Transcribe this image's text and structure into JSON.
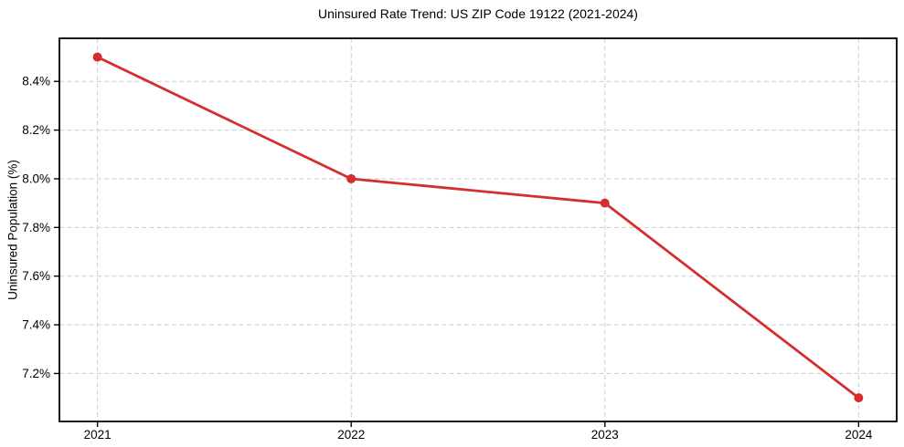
{
  "chart_data": {
    "type": "line",
    "title": "Uninsured Rate Trend: US ZIP Code 19122 (2021-2024)",
    "xlabel": "",
    "ylabel": "Uninsured Population (%)",
    "categories": [
      2021,
      2022,
      2023,
      2024
    ],
    "series": [
      {
        "name": "Uninsured rate",
        "values": [
          8.5,
          8.0,
          7.9,
          7.1
        ]
      }
    ],
    "unit": "%",
    "xticks": [
      2021,
      2022,
      2023,
      2024
    ],
    "xtick_labels": [
      "2021",
      "2022",
      "2023",
      "2024"
    ],
    "yticks": [
      7.2,
      7.4,
      7.6,
      7.8,
      8.0,
      8.2,
      8.4
    ],
    "ytick_labels": [
      "7.2%",
      "7.4%",
      "7.6%",
      "7.8%",
      "8.0%",
      "8.2%",
      "8.4%"
    ],
    "xlim": [
      2020.85,
      2024.15
    ],
    "ylim": [
      7.003,
      8.577
    ],
    "grid": true,
    "grid_style": "dashed",
    "legend_position": "none",
    "marker": "circle",
    "colors": {
      "line": "#d32f2f",
      "marker": "#d32f2f",
      "grid": "#cccccc",
      "spine": "#000000",
      "text": "#000000",
      "background": "#ffffff"
    }
  }
}
